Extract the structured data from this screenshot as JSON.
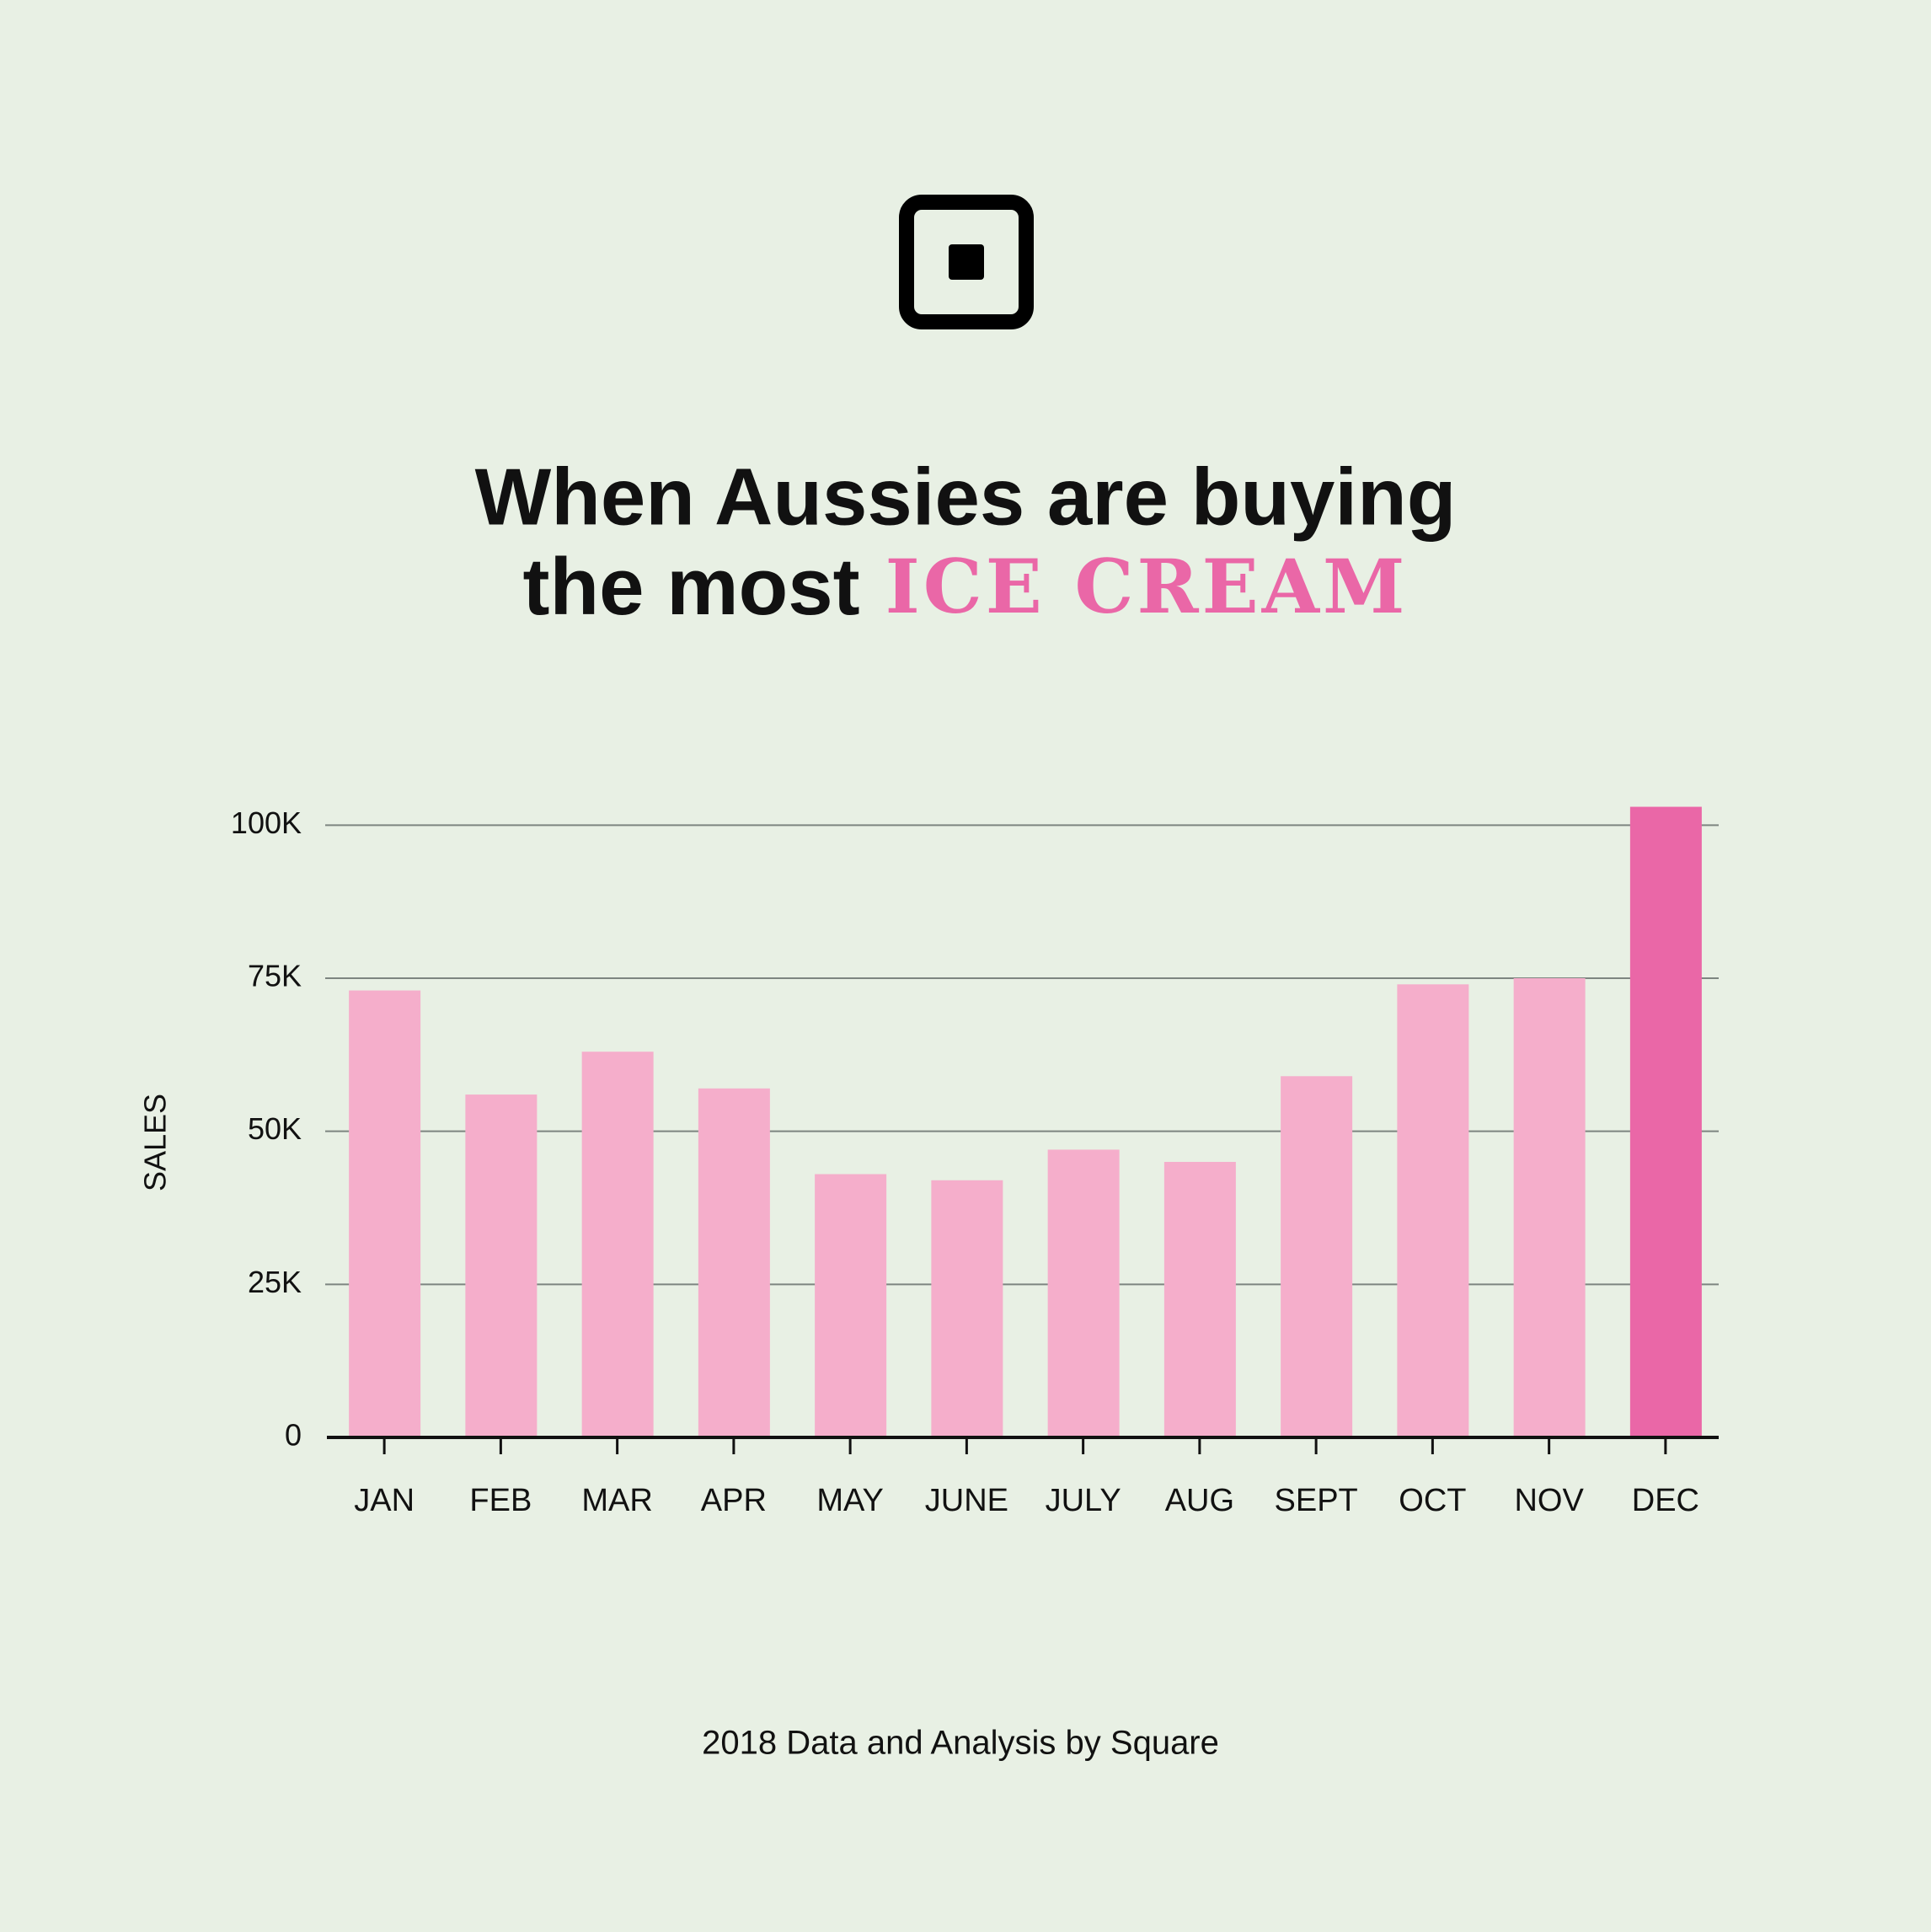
{
  "chart_data": {
    "type": "bar",
    "title": {
      "line1": "When Aussies are buying",
      "line2": "the most",
      "highlight": "ICE CREAM"
    },
    "y_label": "SALES",
    "source": "2018 Data and Analysis by Square",
    "categories": [
      "JAN",
      "FEB",
      "MAR",
      "APR",
      "MAY",
      "JUNE",
      "JULY",
      "AUG",
      "SEPT",
      "OCT",
      "NOV",
      "DEC"
    ],
    "values": [
      73000,
      56000,
      63000,
      57000,
      43000,
      42000,
      47000,
      45000,
      59000,
      74000,
      75000,
      103000
    ],
    "colors": [
      "#f5aecb",
      "#f5aecb",
      "#f5aecb",
      "#f5aecb",
      "#f5aecb",
      "#f5aecb",
      "#f5aecb",
      "#f5aecb",
      "#f5aecb",
      "#f5aecb",
      "#f5aecb",
      "#ea67a7"
    ],
    "ylim": [
      0,
      105000
    ],
    "yticks": [
      {
        "value": 0,
        "label": "0"
      },
      {
        "value": 25000,
        "label": "25K"
      },
      {
        "value": 50000,
        "label": "50K"
      },
      {
        "value": 75000,
        "label": "75K"
      },
      {
        "value": 100000,
        "label": "100K"
      }
    ],
    "grid": true
  }
}
